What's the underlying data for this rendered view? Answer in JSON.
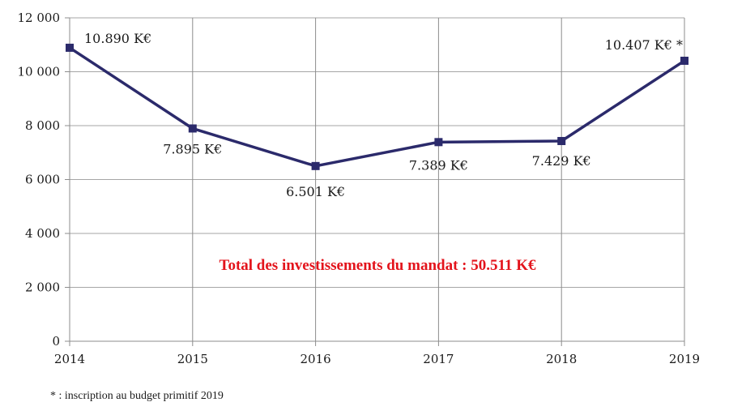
{
  "chart_data": {
    "type": "line",
    "x": [
      "2014",
      "2015",
      "2016",
      "2017",
      "2018",
      "2019"
    ],
    "series": [
      {
        "values": [
          10890,
          7895,
          6501,
          7389,
          7429,
          10407
        ]
      }
    ],
    "data_labels": [
      "10.890 K€",
      "7.895 K€",
      "6.501 K€",
      "7.389 K€",
      "7.429 K€",
      "10.407 K€ *"
    ],
    "yticks": [
      0,
      2000,
      4000,
      6000,
      8000,
      10000,
      12000
    ],
    "ytick_labels": [
      "0",
      "2 000",
      "4 000",
      "6 000",
      "8 000",
      "10 000",
      "12 000"
    ],
    "ylim": [
      0,
      12000
    ],
    "grid": true,
    "line_color": "#2b2a6b",
    "annotation": "Total des investissements du mandat : 50.511 K€",
    "annotation_color": "#e3131b"
  },
  "footnote": "* : inscription au budget primitif 2019"
}
